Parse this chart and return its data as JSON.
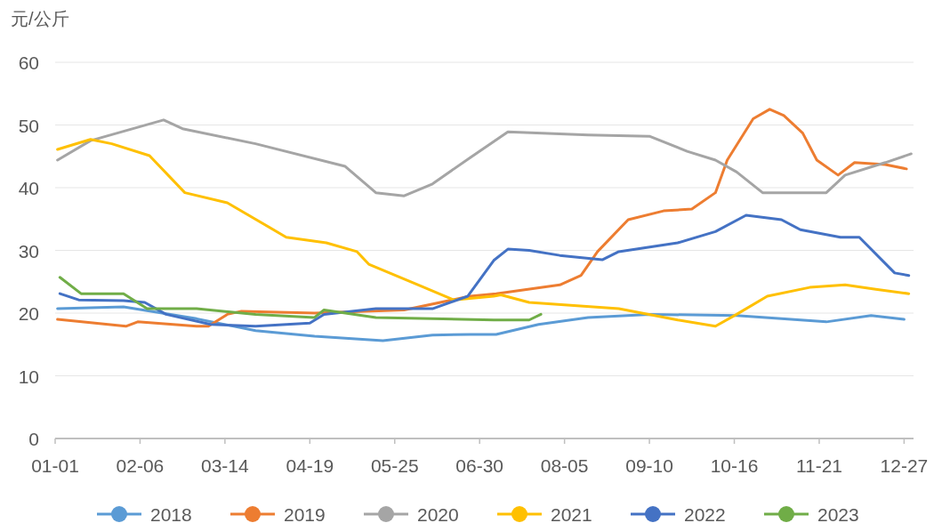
{
  "chart_data": {
    "type": "line",
    "ylabel": "元/公斤",
    "grid": "y",
    "legend": "bottom",
    "line_style": "solid",
    "xlim": [
      "--01-01",
      "--12-31"
    ],
    "xticks": [
      {
        "value": "--01-01",
        "label": "01-01"
      },
      {
        "value": "--02-06",
        "label": "02-06"
      },
      {
        "value": "--03-14",
        "label": "03-14"
      },
      {
        "value": "--04-19",
        "label": "04-19"
      },
      {
        "value": "--05-25",
        "label": "05-25"
      },
      {
        "value": "--06-30",
        "label": "06-30"
      },
      {
        "value": "--08-05",
        "label": "08-05"
      },
      {
        "value": "--09-10",
        "label": "09-10"
      },
      {
        "value": "--10-16",
        "label": "10-16"
      },
      {
        "value": "--11-21",
        "label": "11-21"
      },
      {
        "value": "--12-27",
        "label": "12-27"
      }
    ],
    "ylim": [
      0,
      60
    ],
    "yticks": [
      0,
      10,
      20,
      30,
      40,
      50,
      60
    ],
    "series": [
      {
        "name": "2018",
        "color": "#5b9bd5",
        "x": [
          "--01-02",
          "--01-30",
          "--03-02",
          "--03-27",
          "--04-21",
          "--05-20",
          "--06-10",
          "--06-26",
          "--07-07",
          "--07-25",
          "--08-15",
          "--09-10",
          "--10-17",
          "--11-24",
          "--12-13",
          "--12-27"
        ],
        "values": [
          20.7,
          21.0,
          19.1,
          17.2,
          16.3,
          15.6,
          16.5,
          16.6,
          16.6,
          18.2,
          19.3,
          19.8,
          19.6,
          18.6,
          19.6,
          19.0
        ]
      },
      {
        "name": "2019",
        "color": "#ed7d31",
        "x": [
          "--01-02",
          "--01-31",
          "--02-05",
          "--03-02",
          "--03-07",
          "--03-15",
          "--03-21",
          "--04-21",
          "--05-29",
          "--06-26",
          "--07-07",
          "--08-03",
          "--08-12",
          "--08-19",
          "--09-01",
          "--09-16",
          "--09-28",
          "--10-08",
          "--10-13",
          "--10-24",
          "--10-31",
          "--11-06",
          "--11-14",
          "--11-20",
          "--11-29",
          "--12-06",
          "--12-19",
          "--12-28"
        ],
        "values": [
          19.0,
          17.9,
          18.6,
          17.9,
          17.9,
          19.8,
          20.3,
          20.0,
          20.5,
          22.7,
          23.1,
          24.5,
          26.0,
          29.8,
          34.9,
          36.3,
          36.6,
          39.2,
          44.4,
          51.0,
          52.5,
          51.5,
          48.7,
          44.4,
          42.0,
          44.0,
          43.7,
          43.0
        ]
      },
      {
        "name": "2020",
        "color": "#a5a5a5",
        "x": [
          "--01-02",
          "--01-16",
          "--02-16",
          "--02-24",
          "--03-27",
          "--05-04",
          "--05-17",
          "--05-29",
          "--06-10",
          "--06-26",
          "--07-12",
          "--08-15",
          "--09-10",
          "--09-26",
          "--10-08",
          "--10-17",
          "--10-28",
          "--11-24",
          "--12-02",
          "--12-19",
          "--12-30"
        ],
        "values": [
          44.4,
          47.5,
          50.8,
          49.4,
          47.0,
          43.4,
          39.2,
          38.7,
          40.6,
          44.8,
          48.9,
          48.4,
          48.2,
          45.8,
          44.4,
          42.5,
          39.2,
          39.2,
          42.0,
          44.0,
          45.4
        ]
      },
      {
        "name": "2021",
        "color": "#ffc000",
        "x": [
          "--01-02",
          "--01-16",
          "--01-25",
          "--02-10",
          "--02-25",
          "--03-15",
          "--04-09",
          "--04-26",
          "--05-09",
          "--05-14",
          "--06-04",
          "--06-19",
          "--07-06",
          "--07-09",
          "--07-21",
          "--08-28",
          "--09-22",
          "--10-08",
          "--10-17",
          "--10-30",
          "--11-17",
          "--12-02",
          "--12-15",
          "--12-29"
        ],
        "values": [
          46.1,
          47.7,
          47.0,
          45.1,
          39.2,
          37.6,
          32.1,
          31.2,
          29.8,
          27.8,
          24.5,
          22.1,
          22.7,
          22.9,
          21.7,
          20.7,
          18.9,
          17.9,
          19.8,
          22.7,
          24.1,
          24.5,
          23.8,
          23.1
        ]
      },
      {
        "name": "2022",
        "color": "#4472c4",
        "x": [
          "--01-03",
          "--01-11",
          "--01-30",
          "--02-08",
          "--02-17",
          "--03-08",
          "--03-27",
          "--04-19",
          "--04-25",
          "--05-17",
          "--06-10",
          "--06-25",
          "--07-06",
          "--07-12",
          "--07-21",
          "--08-03",
          "--08-21",
          "--08-28",
          "--09-22",
          "--10-08",
          "--10-21",
          "--11-05",
          "--11-13",
          "--11-30",
          "--12-08",
          "--12-23",
          "--12-29"
        ],
        "values": [
          23.1,
          22.1,
          22.0,
          21.7,
          19.8,
          18.2,
          17.9,
          18.4,
          19.8,
          20.7,
          20.7,
          22.7,
          28.4,
          30.2,
          30.0,
          29.2,
          28.5,
          29.8,
          31.2,
          33.0,
          35.6,
          34.9,
          33.3,
          32.1,
          32.1,
          26.4,
          26.0
        ]
      },
      {
        "name": "2023",
        "color": "#70ad47",
        "x": [
          "--01-03",
          "--01-12",
          "--01-30",
          "--02-09",
          "--03-02",
          "--03-27",
          "--04-21",
          "--04-25",
          "--05-17",
          "--07-06",
          "--07-21",
          "--07-26"
        ],
        "values": [
          25.7,
          23.1,
          23.1,
          20.7,
          20.7,
          19.8,
          19.3,
          20.5,
          19.3,
          18.9,
          18.9,
          19.8
        ]
      }
    ]
  }
}
